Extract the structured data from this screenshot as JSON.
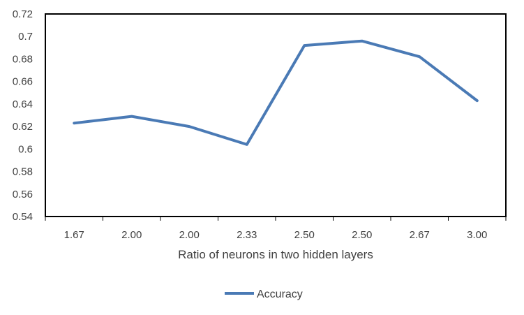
{
  "chart_data": {
    "type": "line",
    "title": "",
    "xlabel": "Ratio of neurons in two hidden layers",
    "ylabel": "",
    "categories": [
      "1.67",
      "2.00",
      "2.00",
      "2.33",
      "2.50",
      "2.50",
      "2.67",
      "3.00"
    ],
    "y_ticks": [
      "0.54",
      "0.56",
      "0.58",
      "0.6",
      "0.62",
      "0.64",
      "0.66",
      "0.68",
      "0.7",
      "0.72"
    ],
    "ylim": [
      0.54,
      0.72
    ],
    "grid": false,
    "legend_position": "bottom",
    "series": [
      {
        "name": "Accuracy",
        "color": "#4a7ab5",
        "values": [
          0.623,
          0.629,
          0.62,
          0.604,
          0.692,
          0.696,
          0.682,
          0.643
        ]
      }
    ]
  }
}
